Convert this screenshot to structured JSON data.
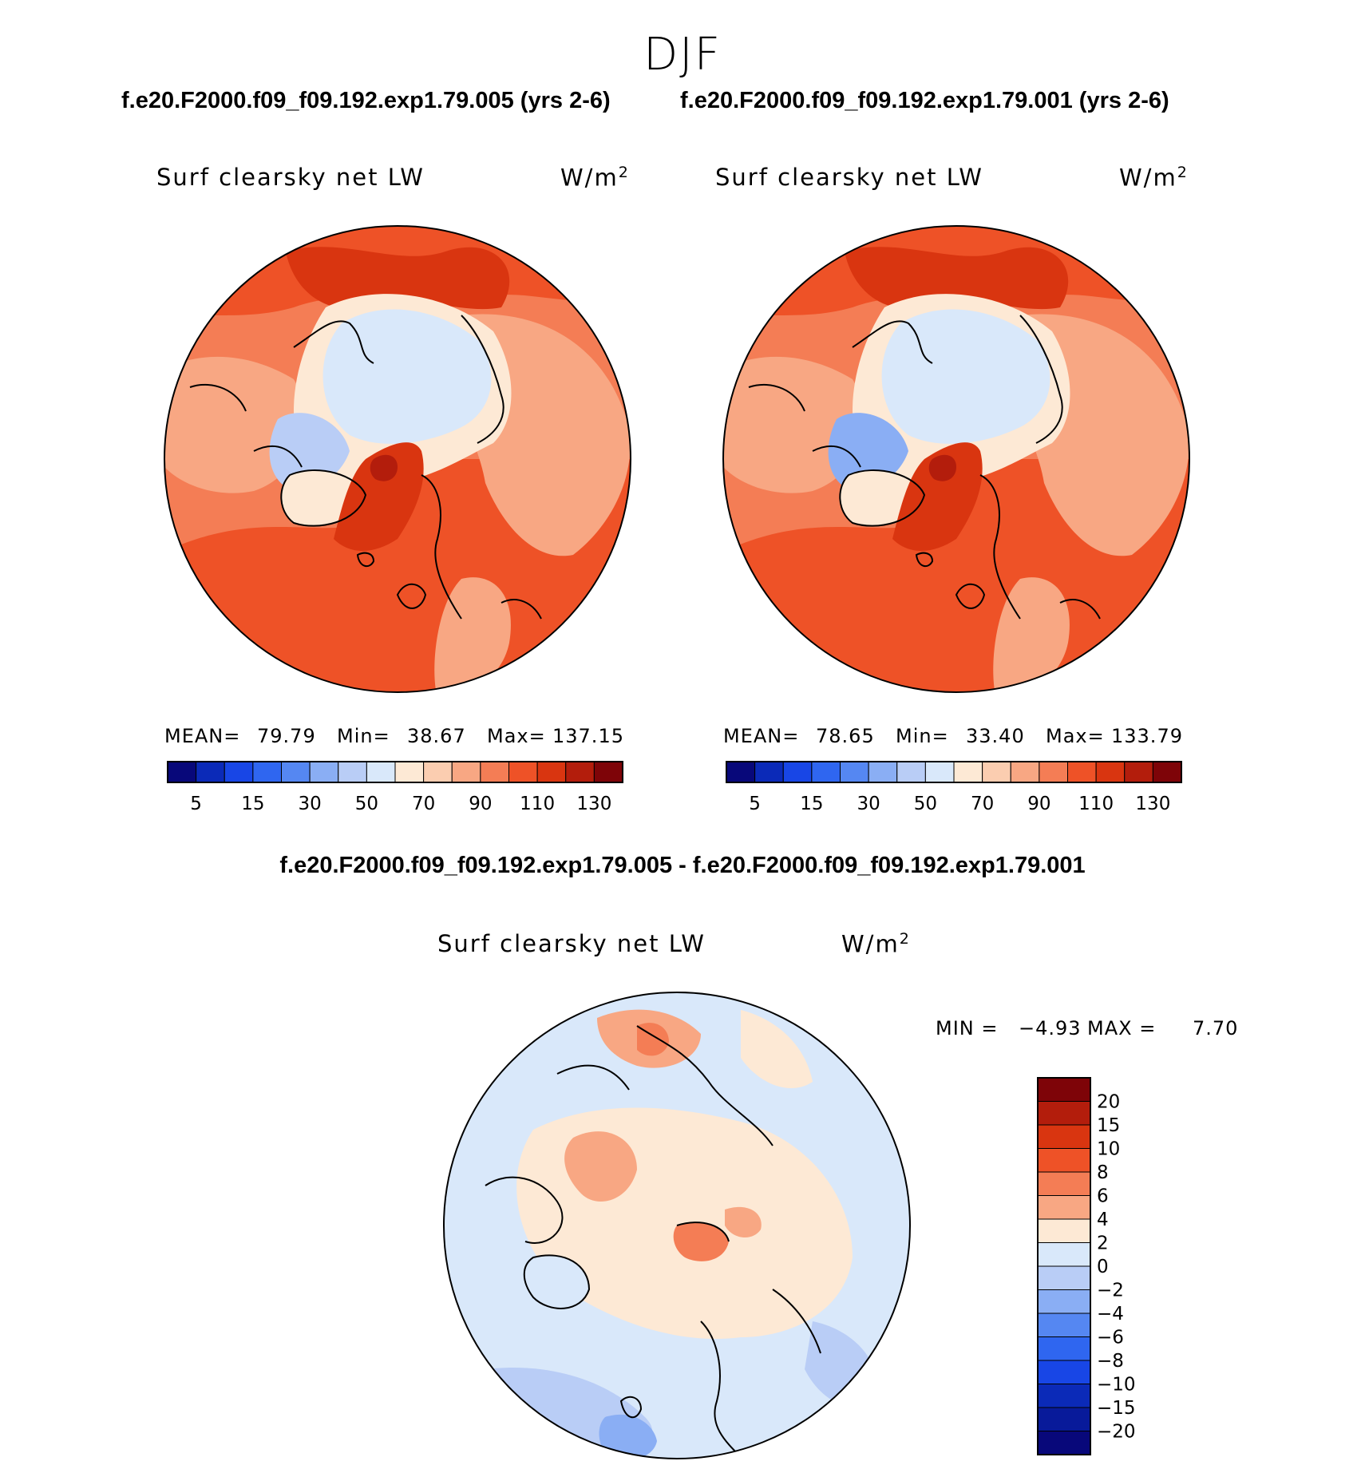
{
  "figure": {
    "season": "DJF",
    "left_title": "f.e20.F2000.f09_f09.192.exp1.79.005 (yrs 2-6)",
    "right_title": "f.e20.F2000.f09_f09.192.exp1.79.001 (yrs 2-6)",
    "diff_title": "f.e20.F2000.f09_f09.192.exp1.79.005 - f.e20.F2000.f09_f09.192.exp1.79.001"
  },
  "panels": {
    "left": {
      "variable": "Surf clearsky net LW",
      "units": "W/m",
      "units_exp": "2",
      "mean_label": "MEAN=",
      "mean_value": "79.79",
      "min_label": "Min=",
      "min_value": "38.67",
      "max_label": "Max=",
      "max_value": "137.15"
    },
    "right": {
      "variable": "Surf clearsky net LW",
      "units": "W/m",
      "units_exp": "2",
      "mean_label": "MEAN=",
      "mean_value": "78.65",
      "min_label": "Min=",
      "min_value": "33.40",
      "max_label": "Max=",
      "max_value": "133.79"
    },
    "diff": {
      "variable": "Surf clearsky net LW",
      "units": "W/m",
      "units_exp": "2",
      "min_label": "MIN =",
      "min_value": "−4.93",
      "max_label": "MAX =",
      "max_value": "7.70"
    }
  },
  "chart_data": [
    {
      "type": "heatmap",
      "name": "model-panel-005",
      "projection": "north-polar-stereographic",
      "title": "f.e20.F2000.f09_f09.192.exp1.79.005 (yrs 2-6)",
      "variable": "Surf clearsky net LW",
      "units": "W/m2",
      "mean": 79.79,
      "min": 38.67,
      "max": 137.15,
      "colorbar_tick_labels": [
        "5",
        "15",
        "30",
        "50",
        "70",
        "90",
        "110",
        "130"
      ],
      "colorbar_colors": [
        "#08087a",
        "#0b2ab8",
        "#1846e6",
        "#2f66f0",
        "#5587f2",
        "#8aaef4",
        "#b9cdf6",
        "#d9e8fa",
        "#fde9d5",
        "#fbcdb0",
        "#f8a783",
        "#f47d55",
        "#ee5227",
        "#d93510",
        "#b31d0c",
        "#7e0408"
      ]
    },
    {
      "type": "heatmap",
      "name": "model-panel-001",
      "projection": "north-polar-stereographic",
      "title": "f.e20.F2000.f09_f09.192.exp1.79.001 (yrs 2-6)",
      "variable": "Surf clearsky net LW",
      "units": "W/m2",
      "mean": 78.65,
      "min": 33.4,
      "max": 133.79,
      "colorbar_tick_labels": [
        "5",
        "15",
        "30",
        "50",
        "70",
        "90",
        "110",
        "130"
      ],
      "colorbar_colors": [
        "#08087a",
        "#0b2ab8",
        "#1846e6",
        "#2f66f0",
        "#5587f2",
        "#8aaef4",
        "#b9cdf6",
        "#d9e8fa",
        "#fde9d5",
        "#fbcdb0",
        "#f8a783",
        "#f47d55",
        "#ee5227",
        "#d93510",
        "#b31d0c",
        "#7e0408"
      ]
    },
    {
      "type": "heatmap",
      "name": "difference-panel",
      "projection": "north-polar-stereographic",
      "title": "f.e20.F2000.f09_f09.192.exp1.79.005 - f.e20.F2000.f09_f09.192.exp1.79.001",
      "variable": "Surf clearsky net LW",
      "units": "W/m2",
      "min": -4.93,
      "max": 7.7,
      "colorbar_tick_labels": [
        "20",
        "15",
        "10",
        "8",
        "6",
        "4",
        "2",
        "0",
        "−2",
        "−4",
        "−6",
        "−8",
        "−10",
        "−15",
        "−20"
      ],
      "colorbar_colors": [
        "#7e0408",
        "#b31d0c",
        "#d93510",
        "#ee5227",
        "#f47d55",
        "#f8a783",
        "#fde9d5",
        "#d9e8fa",
        "#b9cdf6",
        "#8aaef4",
        "#5587f2",
        "#2f66f0",
        "#1846e6",
        "#0b2ab8",
        "#081a9a",
        "#08087a"
      ]
    }
  ]
}
